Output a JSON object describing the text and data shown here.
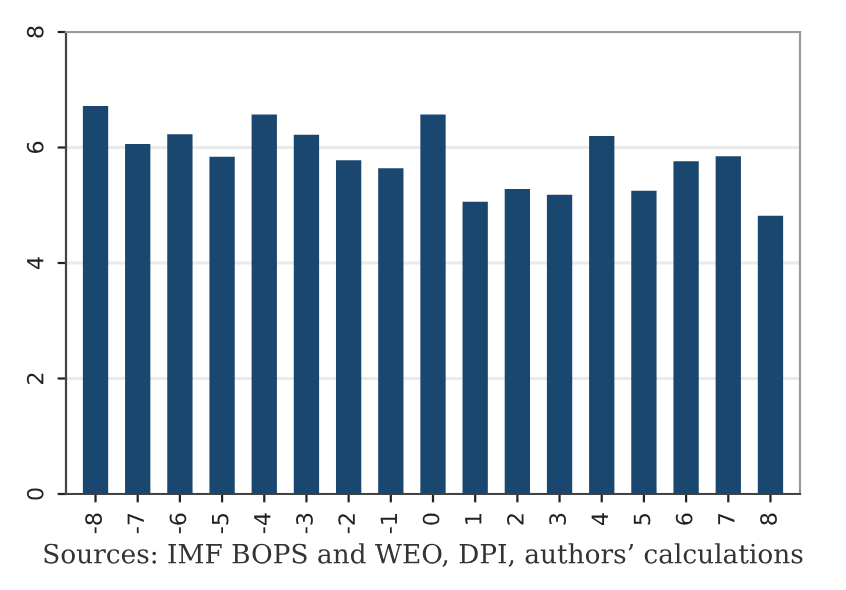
{
  "chart_data": {
    "type": "bar",
    "categories": [
      "-8",
      "-7",
      "-6",
      "-5",
      "-4",
      "-3",
      "-2",
      "-1",
      "0",
      "1",
      "2",
      "3",
      "4",
      "5",
      "6",
      "7",
      "8"
    ],
    "values": [
      6.72,
      6.06,
      6.23,
      5.84,
      6.57,
      6.22,
      5.78,
      5.64,
      6.57,
      5.06,
      5.28,
      5.18,
      6.2,
      5.25,
      5.76,
      5.85,
      4.82
    ],
    "color": "#1a476f",
    "ylim": [
      0,
      8
    ],
    "yticks": [
      0,
      2,
      4,
      6,
      8
    ],
    "grid": "y",
    "annotations": [
      "Sources: IMF BOPS and WEO, DPI, authors’ calculations"
    ]
  }
}
